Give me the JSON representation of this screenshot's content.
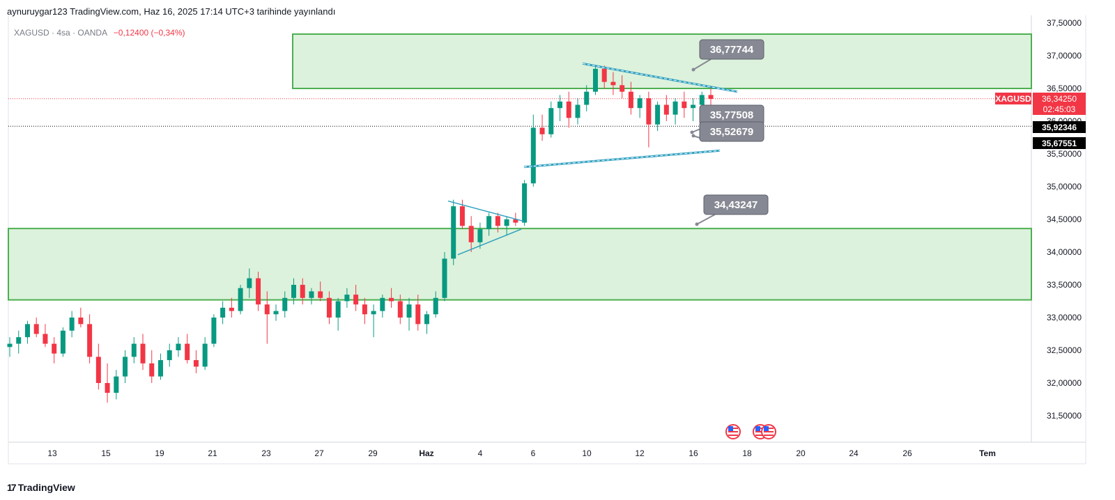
{
  "header": {
    "published": "aynuruygar123 TradingView.com, Haz 16, 2025 17:14 UTC+3 tarihinde yayınlandı"
  },
  "symbol": {
    "ticker": "XAGUSD",
    "interval": "4sa",
    "broker": "OANDA",
    "separator": "·",
    "change": "−0,12400 (−0,34%)"
  },
  "footer": {
    "brand": "TradingView",
    "mark": "17"
  },
  "chart_data": {
    "type": "candlestick",
    "y_axis": {
      "min": 31.2,
      "max": 37.5,
      "ticks": [
        "37,50000",
        "37,00000",
        "36,50000",
        "36,00000",
        "35,50000",
        "35,00000",
        "34,50000",
        "34,00000",
        "33,50000",
        "33,00000",
        "32,50000",
        "32,00000",
        "31,50000"
      ],
      "tick_values": [
        37.5,
        37.0,
        36.5,
        36.0,
        35.5,
        35.0,
        34.5,
        34.0,
        33.5,
        33.0,
        32.5,
        32.0,
        31.5
      ]
    },
    "x_axis": {
      "labels": [
        "13",
        "15",
        "19",
        "21",
        "23",
        "27",
        "29",
        "Haz",
        "4",
        "6",
        "10",
        "12",
        "16",
        "18",
        "20",
        "24",
        "26",
        "Tem"
      ]
    },
    "price_labels": [
      {
        "name": "symbol-price",
        "label": "XAGUSD",
        "value": "36,34250",
        "sub": "02:45:03",
        "price": 36.3425,
        "color": "#f23645"
      },
      {
        "name": "line-price-1",
        "value": "35,92346",
        "price": 35.92346,
        "color": "#000000"
      },
      {
        "name": "line-price-2",
        "value": "35,67551",
        "price": 35.67551,
        "color": "#000000"
      }
    ],
    "zones": [
      {
        "name": "resistance-zone",
        "top": 37.33,
        "bottom": 36.5
      },
      {
        "name": "support-zone",
        "top": 34.36,
        "bottom": 33.27
      }
    ],
    "callouts": [
      {
        "text": "36,77744",
        "price": 36.77744
      },
      {
        "text": "35,77508",
        "price": 35.77508
      },
      {
        "text": "35,52679",
        "price": 35.52679
      },
      {
        "text": "34,43247",
        "price": 34.43247
      }
    ],
    "colors": {
      "up": "#089981",
      "down": "#f23645",
      "zone_fill": "#dcf2dc",
      "zone_stroke": "#4caf50",
      "trend": "#2e9fbf",
      "callout": "#868993"
    },
    "candles": [
      [
        32.55,
        32.7,
        32.4,
        32.6
      ],
      [
        32.6,
        32.8,
        32.45,
        32.7
      ],
      [
        32.7,
        32.95,
        32.6,
        32.9
      ],
      [
        32.9,
        33.0,
        32.7,
        32.75
      ],
      [
        32.75,
        32.9,
        32.55,
        32.6
      ],
      [
        32.6,
        32.7,
        32.3,
        32.45
      ],
      [
        32.45,
        32.85,
        32.4,
        32.8
      ],
      [
        32.8,
        33.1,
        32.7,
        33.0
      ],
      [
        33.0,
        33.15,
        32.85,
        32.9
      ],
      [
        32.9,
        33.05,
        32.3,
        32.4
      ],
      [
        32.4,
        32.6,
        31.9,
        32.0
      ],
      [
        32.0,
        32.3,
        31.7,
        31.85
      ],
      [
        31.85,
        32.2,
        31.75,
        32.1
      ],
      [
        32.1,
        32.5,
        32.0,
        32.4
      ],
      [
        32.4,
        32.7,
        32.3,
        32.6
      ],
      [
        32.6,
        32.75,
        32.2,
        32.3
      ],
      [
        32.3,
        32.5,
        32.0,
        32.1
      ],
      [
        32.1,
        32.45,
        32.05,
        32.35
      ],
      [
        32.35,
        32.6,
        32.25,
        32.5
      ],
      [
        32.5,
        32.7,
        32.4,
        32.6
      ],
      [
        32.6,
        32.75,
        32.3,
        32.35
      ],
      [
        32.35,
        32.5,
        32.15,
        32.25
      ],
      [
        32.25,
        32.7,
        32.2,
        32.6
      ],
      [
        32.6,
        33.05,
        32.55,
        33.0
      ],
      [
        33.0,
        33.25,
        32.9,
        33.15
      ],
      [
        33.15,
        33.3,
        33.0,
        33.1
      ],
      [
        33.1,
        33.5,
        33.05,
        33.45
      ],
      [
        33.45,
        33.75,
        33.3,
        33.6
      ],
      [
        33.6,
        33.7,
        33.1,
        33.2
      ],
      [
        33.2,
        33.4,
        32.6,
        33.05
      ],
      [
        33.05,
        33.2,
        32.95,
        33.1
      ],
      [
        33.1,
        33.4,
        33.0,
        33.3
      ],
      [
        33.3,
        33.6,
        33.2,
        33.5
      ],
      [
        33.5,
        33.6,
        33.2,
        33.3
      ],
      [
        33.3,
        33.45,
        33.2,
        33.4
      ],
      [
        33.4,
        33.55,
        33.25,
        33.3
      ],
      [
        33.3,
        33.4,
        32.9,
        33.0
      ],
      [
        33.0,
        33.3,
        32.8,
        33.25
      ],
      [
        33.25,
        33.45,
        33.15,
        33.35
      ],
      [
        33.35,
        33.5,
        33.1,
        33.2
      ],
      [
        33.2,
        33.3,
        32.9,
        33.05
      ],
      [
        33.05,
        33.2,
        32.7,
        33.1
      ],
      [
        33.1,
        33.35,
        33.0,
        33.3
      ],
      [
        33.3,
        33.45,
        33.15,
        33.25
      ],
      [
        33.25,
        33.35,
        32.9,
        33.0
      ],
      [
        33.0,
        33.3,
        32.8,
        33.2
      ],
      [
        33.2,
        33.35,
        32.8,
        32.9
      ],
      [
        32.9,
        33.1,
        32.75,
        33.05
      ],
      [
        33.05,
        33.4,
        33.0,
        33.3
      ],
      [
        33.3,
        34.0,
        33.25,
        33.9
      ],
      [
        33.9,
        34.8,
        33.8,
        34.7
      ],
      [
        34.7,
        34.8,
        34.35,
        34.4
      ],
      [
        34.4,
        34.55,
        34.0,
        34.15
      ],
      [
        34.15,
        34.45,
        34.05,
        34.35
      ],
      [
        34.35,
        34.6,
        34.25,
        34.55
      ],
      [
        34.55,
        34.6,
        34.3,
        34.4
      ],
      [
        34.4,
        34.55,
        34.25,
        34.5
      ],
      [
        34.5,
        34.6,
        34.4,
        34.45
      ],
      [
        34.45,
        35.1,
        34.4,
        35.05
      ],
      [
        35.05,
        36.1,
        35.0,
        35.9
      ],
      [
        35.9,
        36.1,
        35.7,
        35.8
      ],
      [
        35.8,
        36.3,
        35.75,
        36.2
      ],
      [
        36.2,
        36.4,
        36.0,
        36.3
      ],
      [
        36.3,
        36.45,
        35.9,
        36.05
      ],
      [
        36.05,
        36.35,
        35.95,
        36.25
      ],
      [
        36.25,
        36.55,
        36.15,
        36.45
      ],
      [
        36.45,
        36.85,
        36.4,
        36.8
      ],
      [
        36.8,
        36.85,
        36.5,
        36.6
      ],
      [
        36.6,
        36.75,
        36.4,
        36.55
      ],
      [
        36.55,
        36.7,
        36.35,
        36.45
      ],
      [
        36.45,
        36.6,
        36.1,
        36.2
      ],
      [
        36.2,
        36.4,
        36.05,
        36.35
      ],
      [
        36.35,
        36.45,
        35.6,
        35.95
      ],
      [
        35.95,
        36.3,
        35.85,
        36.25
      ],
      [
        36.25,
        36.4,
        36.0,
        36.1
      ],
      [
        36.1,
        36.35,
        35.95,
        36.3
      ],
      [
        36.3,
        36.45,
        36.05,
        36.2
      ],
      [
        36.2,
        36.35,
        36.0,
        36.25
      ],
      [
        36.25,
        36.45,
        36.15,
        36.4
      ],
      [
        36.4,
        36.5,
        36.2,
        36.34
      ]
    ]
  }
}
